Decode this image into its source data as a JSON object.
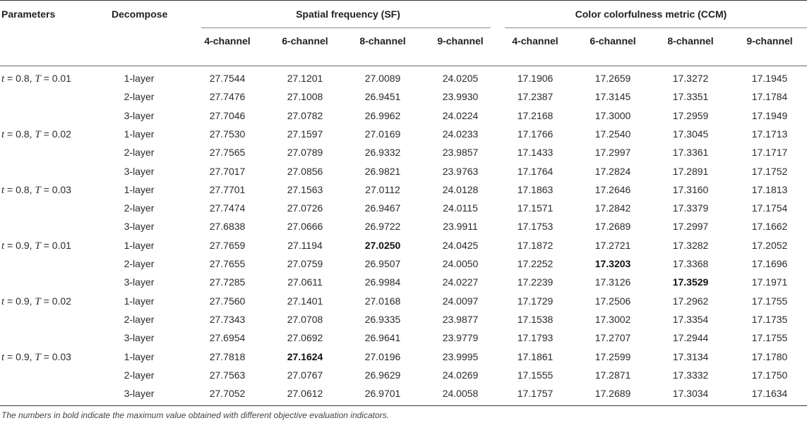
{
  "headers": {
    "parameters": "Parameters",
    "decompose": "Decompose",
    "sf_group": "Spatial frequency (SF)",
    "ccm_group": "Color colorfulness metric (CCM)",
    "channels": [
      "4-channel",
      "6-channel",
      "8-channel",
      "9-channel"
    ]
  },
  "groups": [
    {
      "t": "0.8",
      "T": "0.01",
      "rows": [
        {
          "layer": "1-layer",
          "sf": [
            "27.7544",
            "27.1201",
            "27.0089",
            "24.0205"
          ],
          "ccm": [
            "17.1906",
            "17.2659",
            "17.3272",
            "17.1945"
          ]
        },
        {
          "layer": "2-layer",
          "sf": [
            "27.7476",
            "27.1008",
            "26.9451",
            "23.9930"
          ],
          "ccm": [
            "17.2387",
            "17.3145",
            "17.3351",
            "17.1784"
          ]
        },
        {
          "layer": "3-layer",
          "sf": [
            "27.7046",
            "27.0782",
            "26.9962",
            "24.0224"
          ],
          "ccm": [
            "17.2168",
            "17.3000",
            "17.2959",
            "17.1949"
          ]
        }
      ]
    },
    {
      "t": "0.8",
      "T": "0.02",
      "rows": [
        {
          "layer": "1-layer",
          "sf": [
            "27.7530",
            "27.1597",
            "27.0169",
            "24.0233"
          ],
          "ccm": [
            "17.1766",
            "17.2540",
            "17.3045",
            "17.1713"
          ]
        },
        {
          "layer": "2-layer",
          "sf": [
            "27.7565",
            "27.0789",
            "26.9332",
            "23.9857"
          ],
          "ccm": [
            "17.1433",
            "17.2997",
            "17.3361",
            "17.1717"
          ]
        },
        {
          "layer": "3-layer",
          "sf": [
            "27.7017",
            "27.0856",
            "26.9821",
            "23.9763"
          ],
          "ccm": [
            "17.1764",
            "17.2824",
            "17.2891",
            "17.1752"
          ]
        }
      ]
    },
    {
      "t": "0.8",
      "T": "0.03",
      "rows": [
        {
          "layer": "1-layer",
          "sf": [
            "27.7701",
            "27.1563",
            "27.0112",
            "24.0128"
          ],
          "ccm": [
            "17.1863",
            "17.2646",
            "17.3160",
            "17.1813"
          ]
        },
        {
          "layer": "2-layer",
          "sf": [
            "27.7474",
            "27.0726",
            "26.9467",
            "24.0115"
          ],
          "ccm": [
            "17.1571",
            "17.2842",
            "17.3379",
            "17.1754"
          ]
        },
        {
          "layer": "3-layer",
          "sf": [
            "27.6838",
            "27.0666",
            "26.9722",
            "23.9911"
          ],
          "ccm": [
            "17.1753",
            "17.2689",
            "17.2997",
            "17.1662"
          ]
        }
      ]
    },
    {
      "t": "0.9",
      "T": "0.01",
      "rows": [
        {
          "layer": "1-layer",
          "sf": [
            "27.7659",
            "27.1194",
            "27.0250",
            "24.0425"
          ],
          "ccm": [
            "17.1872",
            "17.2721",
            "17.3282",
            "17.2052"
          ]
        },
        {
          "layer": "2-layer",
          "sf": [
            "27.7655",
            "27.0759",
            "26.9507",
            "24.0050"
          ],
          "ccm": [
            "17.2252",
            "17.3203",
            "17.3368",
            "17.1696"
          ]
        },
        {
          "layer": "3-layer",
          "sf": [
            "27.7285",
            "27.0611",
            "26.9984",
            "24.0227"
          ],
          "ccm": [
            "17.2239",
            "17.3126",
            "17.3529",
            "17.1971"
          ]
        }
      ]
    },
    {
      "t": "0.9",
      "T": "0.02",
      "rows": [
        {
          "layer": "1-layer",
          "sf": [
            "27.7560",
            "27.1401",
            "27.0168",
            "24.0097"
          ],
          "ccm": [
            "17.1729",
            "17.2506",
            "17.2962",
            "17.1755"
          ]
        },
        {
          "layer": "2-layer",
          "sf": [
            "27.7343",
            "27.0708",
            "26.9335",
            "23.9877"
          ],
          "ccm": [
            "17.1538",
            "17.3002",
            "17.3354",
            "17.1735"
          ]
        },
        {
          "layer": "3-layer",
          "sf": [
            "27.6954",
            "27.0692",
            "26.9641",
            "23.9779"
          ],
          "ccm": [
            "17.1793",
            "17.2707",
            "17.2944",
            "17.1755"
          ]
        }
      ]
    },
    {
      "t": "0.9",
      "T": "0.03",
      "rows": [
        {
          "layer": "1-layer",
          "sf": [
            "27.7818",
            "27.1624",
            "27.0196",
            "23.9995"
          ],
          "ccm": [
            "17.1861",
            "17.2599",
            "17.3134",
            "17.1780"
          ]
        },
        {
          "layer": "2-layer",
          "sf": [
            "27.7563",
            "27.0767",
            "26.9629",
            "24.0269"
          ],
          "ccm": [
            "17.1555",
            "17.2871",
            "17.3332",
            "17.1750"
          ]
        },
        {
          "layer": "3-layer",
          "sf": [
            "27.7052",
            "27.0612",
            "26.9701",
            "24.0058"
          ],
          "ccm": [
            "17.1757",
            "17.2689",
            "17.3034",
            "17.1634"
          ]
        }
      ]
    }
  ],
  "bold_cells": [
    {
      "group": 3,
      "row": 0,
      "metric": "sf",
      "col": 2
    },
    {
      "group": 5,
      "row": 0,
      "metric": "sf",
      "col": 1
    },
    {
      "group": 3,
      "row": 1,
      "metric": "ccm",
      "col": 1
    },
    {
      "group": 3,
      "row": 2,
      "metric": "ccm",
      "col": 2
    }
  ],
  "footnote": "The numbers in bold indicate the maximum value obtained with different objective evaluation indicators."
}
